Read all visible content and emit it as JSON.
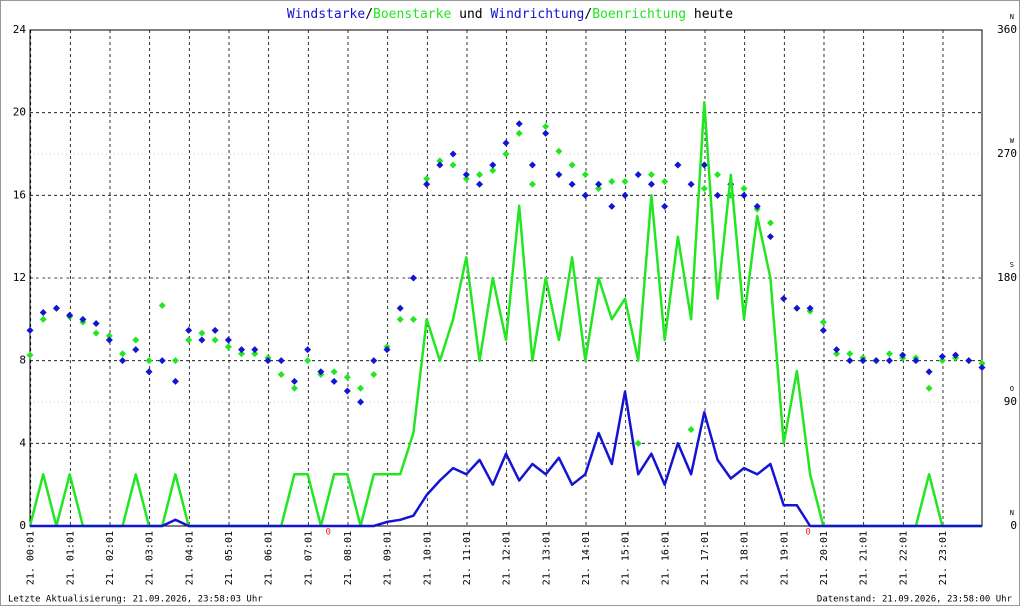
{
  "chart_data": {
    "type": "line",
    "title_joiners": [
      "/",
      " und ",
      "/",
      " heute"
    ],
    "x": [
      0,
      20,
      40,
      60,
      80,
      100,
      120,
      140,
      160,
      180,
      200,
      220,
      240,
      260,
      280,
      300,
      320,
      340,
      360,
      380,
      400,
      420,
      440,
      460,
      480,
      500,
      520,
      540,
      560,
      580,
      600,
      620,
      640,
      660,
      680,
      700,
      720,
      740,
      760,
      780,
      800,
      820,
      840,
      860,
      880,
      900,
      920,
      940,
      960,
      980,
      1000,
      1020,
      1040,
      1060,
      1080,
      1100,
      1120,
      1140,
      1160,
      1180,
      1200,
      1220,
      1240,
      1260,
      1280,
      1300,
      1320,
      1340,
      1360,
      1380,
      1400,
      1420,
      1440
    ],
    "series": [
      {
        "name": "Windstarke",
        "color": "#1414d2",
        "type": "line",
        "values": [
          0,
          0,
          0,
          0,
          0,
          0,
          0,
          0,
          0,
          0,
          0,
          0.3,
          0,
          0,
          0,
          0,
          0,
          0,
          0,
          0,
          0,
          0,
          0,
          0,
          0,
          0,
          0,
          0.2,
          0.3,
          0.5,
          1.5,
          2.2,
          2.8,
          2.5,
          3.2,
          2.0,
          3.5,
          2.2,
          3.0,
          2.5,
          3.3,
          2.0,
          2.5,
          4.5,
          3.0,
          6.5,
          2.5,
          3.5,
          2.0,
          4.0,
          2.5,
          5.5,
          3.2,
          2.3,
          2.8,
          2.5,
          3.0,
          1.0,
          1.0,
          0,
          0,
          0,
          0,
          0,
          0,
          0,
          0,
          0,
          0,
          0,
          0,
          0,
          0
        ]
      },
      {
        "name": "Boenstarke",
        "color": "#22e622",
        "type": "line",
        "values": [
          0,
          2.5,
          0,
          2.5,
          0,
          0,
          0,
          0,
          2.5,
          0,
          0,
          2.5,
          0,
          0,
          0,
          0,
          0,
          0,
          0,
          0,
          2.5,
          2.5,
          0,
          2.5,
          2.5,
          0,
          2.5,
          2.5,
          2.5,
          4.5,
          10,
          8,
          10,
          13,
          8,
          12,
          9,
          15.5,
          8,
          12,
          9,
          13,
          8,
          12,
          10,
          11,
          8,
          16,
          9,
          14,
          10,
          20.5,
          11,
          17,
          10,
          15,
          12,
          4,
          7.5,
          2.5,
          0,
          0,
          0,
          0,
          0,
          0,
          0,
          0,
          2.5,
          0,
          0,
          0,
          0
        ]
      },
      {
        "name": "Windrichtung",
        "color": "#1414d2",
        "type": "scatter",
        "axis": "y2",
        "values": [
          142,
          155,
          158,
          153,
          150,
          147,
          135,
          120,
          128,
          112,
          120,
          105,
          142,
          135,
          142,
          135,
          128,
          128,
          120,
          120,
          105,
          128,
          112,
          105,
          98,
          90,
          120,
          128,
          158,
          180,
          248,
          262,
          270,
          255,
          248,
          262,
          278,
          292,
          262,
          285,
          255,
          248,
          240,
          248,
          232,
          240,
          255,
          248,
          232,
          262,
          248,
          262,
          240,
          248,
          240,
          232,
          210,
          165,
          158,
          158,
          142,
          128,
          120,
          120,
          120,
          120,
          124,
          120,
          112,
          123,
          124,
          120,
          115
        ]
      },
      {
        "name": "Boenrichtung",
        "color": "#22e622",
        "type": "scatter",
        "axis": "y2",
        "values": [
          124,
          150,
          158,
          152,
          148,
          140,
          138,
          125,
          135,
          120,
          160,
          120,
          135,
          140,
          135,
          130,
          125,
          125,
          122,
          110,
          100,
          120,
          110,
          112,
          108,
          100,
          110,
          130,
          150,
          150,
          252,
          265,
          262,
          252,
          255,
          258,
          270,
          285,
          248,
          290,
          272,
          262,
          255,
          245,
          250,
          250,
          60,
          255,
          250,
          262,
          70,
          245,
          255,
          240,
          245,
          230,
          220,
          165,
          158,
          156,
          148,
          125,
          125,
          122,
          120,
          125,
          122,
          122,
          100,
          120,
          122,
          120,
          118
        ]
      }
    ],
    "xlim": [
      0,
      1440
    ],
    "xticks": [
      {
        "value": 1,
        "label": "21. 00:01"
      },
      {
        "value": 61,
        "label": "21. 01:01"
      },
      {
        "value": 121,
        "label": "21. 02:01"
      },
      {
        "value": 181,
        "label": "21. 03:01"
      },
      {
        "value": 241,
        "label": "21. 04:01"
      },
      {
        "value": 301,
        "label": "21. 05:01"
      },
      {
        "value": 361,
        "label": "21. 06:01"
      },
      {
        "value": 421,
        "label": "21. 07:01"
      },
      {
        "value": 481,
        "label": "21. 08:01"
      },
      {
        "value": 541,
        "label": "21. 09:01"
      },
      {
        "value": 601,
        "label": "21. 10:01"
      },
      {
        "value": 661,
        "label": "21. 11:01"
      },
      {
        "value": 721,
        "label": "21. 12:01"
      },
      {
        "value": 781,
        "label": "21. 13:01"
      },
      {
        "value": 841,
        "label": "21. 14:01"
      },
      {
        "value": 901,
        "label": "21. 15:01"
      },
      {
        "value": 961,
        "label": "21. 16:01"
      },
      {
        "value": 1021,
        "label": "21. 17:01"
      },
      {
        "value": 1081,
        "label": "21. 18:01"
      },
      {
        "value": 1141,
        "label": "21. 19:01"
      },
      {
        "value": 1201,
        "label": "21. 20:01"
      },
      {
        "value": 1261,
        "label": "21. 21:01"
      },
      {
        "value": 1321,
        "label": "21. 22:01"
      },
      {
        "value": 1381,
        "label": "21. 23:01"
      }
    ],
    "ylim": [
      0,
      24
    ],
    "yticks": [
      0,
      4,
      8,
      12,
      16,
      20,
      24
    ],
    "y2lim": [
      0,
      360
    ],
    "y2ticks": [
      0,
      90,
      180,
      270,
      360
    ],
    "y2tick_directions": [
      "N",
      "O",
      "S",
      "W",
      "N"
    ],
    "grid": true,
    "annotations": [
      {
        "text": "0",
        "x": 451,
        "color": "#ff2020"
      },
      {
        "text": "0",
        "x": 1177,
        "color": "#ff2020"
      }
    ],
    "footer_left": "Letzte Aktualisierung: 21.09.2026, 23:58:03 Uhr",
    "footer_right": "Datenstand: 21.09.2026, 23:58:00 Uhr"
  }
}
